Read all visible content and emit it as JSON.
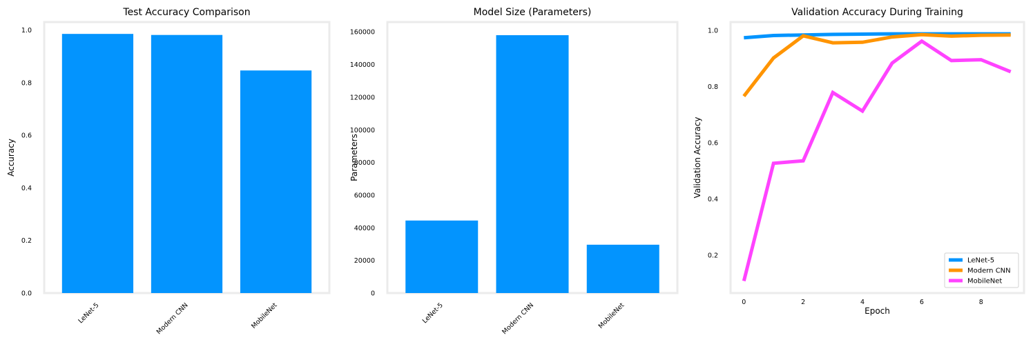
{
  "colors": {
    "bar": "#0394fe",
    "frame": "#ebebeb",
    "series": [
      "#0394fe",
      "#ff9400",
      "#ff43ff"
    ]
  },
  "chart_data": [
    {
      "type": "bar",
      "title": "Test Accuracy Comparison",
      "xlabel": "",
      "ylabel": "Accuracy",
      "categories": [
        "LeNet-5",
        "Modern CNN",
        "MobileNet"
      ],
      "values": [
        0.985,
        0.981,
        0.846
      ],
      "ylim": [
        0,
        1.03
      ],
      "yticks": [
        0.0,
        0.2,
        0.4,
        0.6,
        0.8,
        1.0
      ],
      "ytick_labels": [
        "0.0",
        "0.2",
        "0.4",
        "0.6",
        "0.8",
        "1.0"
      ],
      "grid": false
    },
    {
      "type": "bar",
      "title": "Model Size (Parameters)",
      "xlabel": "",
      "ylabel": "Parameters",
      "categories": [
        "LeNet-5",
        "Modern CNN",
        "MobileNet"
      ],
      "values": [
        44426,
        157962,
        29610
      ],
      "ylim": [
        0,
        166000
      ],
      "yticks": [
        0,
        20000,
        40000,
        60000,
        80000,
        100000,
        120000,
        140000,
        160000
      ],
      "ytick_labels": [
        "0",
        "20000",
        "40000",
        "60000",
        "80000",
        "100000",
        "120000",
        "140000",
        "160000"
      ],
      "grid": false
    },
    {
      "type": "line",
      "title": "Validation Accuracy During Training",
      "xlabel": "Epoch",
      "ylabel": "Validation Accuracy",
      "x": [
        0,
        1,
        2,
        3,
        4,
        5,
        6,
        7,
        8,
        9
      ],
      "xlim": [
        -0.45,
        9.45
      ],
      "ylim": [
        0.065,
        1.03
      ],
      "xticks": [
        0,
        2,
        4,
        6,
        8
      ],
      "xtick_labels": [
        "0",
        "2",
        "4",
        "6",
        "8"
      ],
      "yticks": [
        0.2,
        0.4,
        0.6,
        0.8,
        1.0
      ],
      "ytick_labels": [
        "0.2",
        "0.4",
        "0.6",
        "0.8",
        "1.0"
      ],
      "legend": "bottom-right",
      "grid": false,
      "series": [
        {
          "name": "LeNet-5",
          "values": [
            0.974,
            0.982,
            0.984,
            0.986,
            0.987,
            0.988,
            0.988,
            0.988,
            0.988,
            0.988
          ]
        },
        {
          "name": "Modern CNN",
          "values": [
            0.766,
            0.902,
            0.981,
            0.956,
            0.958,
            0.977,
            0.985,
            0.98,
            0.983,
            0.984
          ]
        },
        {
          "name": "MobileNet",
          "values": [
            0.108,
            0.527,
            0.536,
            0.779,
            0.713,
            0.884,
            0.962,
            0.893,
            0.896,
            0.853
          ]
        }
      ]
    }
  ]
}
